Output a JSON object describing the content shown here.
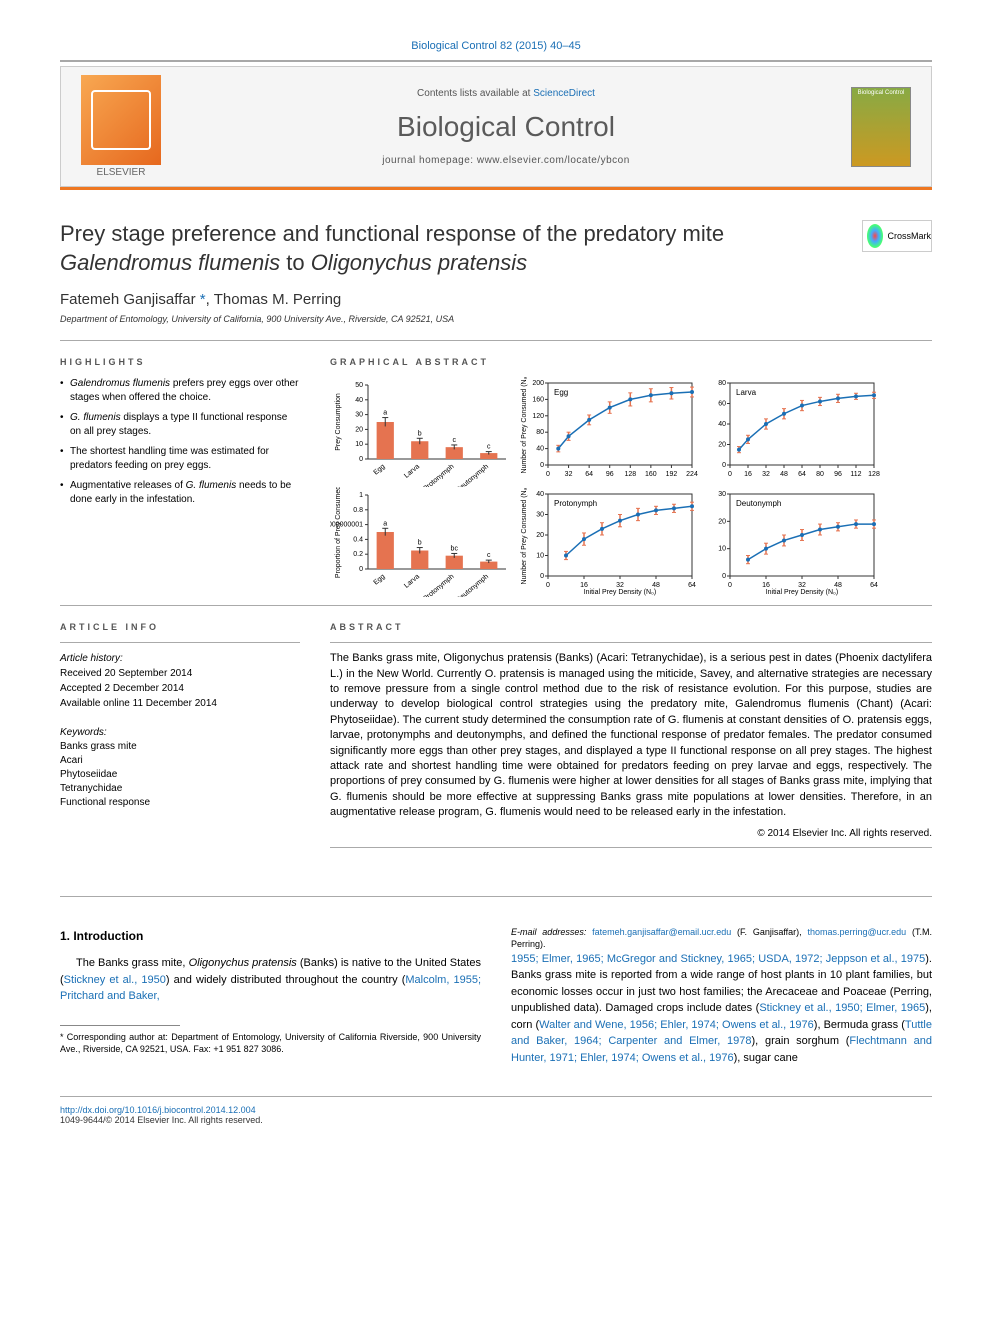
{
  "top_citation": "Biological Control 82 (2015) 40–45",
  "header": {
    "contents": "Contents lists available at",
    "sciencedirect": "ScienceDirect",
    "journal_name": "Biological Control",
    "homepage_label": "journal homepage:",
    "homepage_url": "www.elsevier.com/locate/ybcon",
    "publisher": "ELSEVIER",
    "cover_text": "Biological Control"
  },
  "crossmark_label": "CrossMark",
  "title_line1": "Prey stage preference and functional response of the predatory mite",
  "title_line2_em1": "Galendromus flumenis",
  "title_line2_mid": " to ",
  "title_line2_em2": "Oligonychus pratensis",
  "authors": {
    "a1": "Fatemeh Ganjisaffar",
    "a1_mark": "*",
    "sep": ", ",
    "a2": "Thomas M. Perring"
  },
  "affiliation": "Department of Entomology, University of California, 900 University Ave., Riverside, CA 92521, USA",
  "highlights": {
    "label": "HIGHLIGHTS",
    "items": [
      "Galendromus flumenis prefers prey eggs over other stages when offered the choice.",
      "G. flumenis displays a type II functional response on all prey stages.",
      "The shortest handling time was estimated for predators feeding on prey eggs.",
      "Augmentative releases of G. flumenis needs to be done early in the infestation."
    ]
  },
  "graphical_abstract_label": "GRAPHICAL ABSTRACT",
  "charts": {
    "bar1": {
      "ylabel": "Prey Consumption",
      "categories": [
        "Egg",
        "Larva",
        "Protonymph",
        "Deutonymph"
      ],
      "values": [
        25,
        12,
        8,
        4
      ],
      "letters": [
        "a",
        "b",
        "c",
        "c"
      ],
      "bar_color": "#e57350",
      "ymax": 50,
      "ytick": 10,
      "err": [
        3,
        2,
        1.5,
        1
      ]
    },
    "bar2": {
      "ylabel": "Proportion of Prey Consumed",
      "categories": [
        "Egg",
        "Larva",
        "Protonymph",
        "Deutonymph"
      ],
      "values": [
        0.5,
        0.25,
        0.18,
        0.1
      ],
      "letters": [
        "a",
        "b",
        "bc",
        "c"
      ],
      "bar_color": "#e57350",
      "ymax": 1.0,
      "ytick": 0.2,
      "err": [
        0.05,
        0.04,
        0.03,
        0.02
      ]
    },
    "curves": [
      {
        "title": "Egg",
        "xmax": 224,
        "ymax": 200,
        "xtick": 32,
        "ytick": 40,
        "points_x": [
          16,
          32,
          64,
          96,
          128,
          160,
          192,
          224
        ],
        "points_y": [
          40,
          70,
          110,
          140,
          160,
          170,
          175,
          178
        ],
        "err": [
          8,
          10,
          12,
          14,
          16,
          16,
          14,
          12
        ]
      },
      {
        "title": "Larva",
        "xmax": 128,
        "ymax": 80,
        "xtick": 16,
        "ytick": 20,
        "points_x": [
          8,
          16,
          32,
          48,
          64,
          80,
          96,
          112,
          128
        ],
        "points_y": [
          15,
          25,
          40,
          50,
          58,
          62,
          65,
          67,
          68
        ],
        "err": [
          3,
          4,
          5,
          5,
          5,
          4,
          4,
          3,
          3
        ]
      },
      {
        "title": "Protonymph",
        "xmax": 64,
        "ymax": 40,
        "xtick": 16,
        "ytick": 10,
        "points_x": [
          8,
          16,
          24,
          32,
          40,
          48,
          56,
          64
        ],
        "points_y": [
          10,
          18,
          23,
          27,
          30,
          32,
          33,
          34
        ],
        "err": [
          2,
          3,
          3,
          3,
          3,
          2,
          2,
          2
        ]
      },
      {
        "title": "Deutonymph",
        "xmax": 64,
        "ymax": 30,
        "xtick": 16,
        "ytick": 10,
        "points_x": [
          8,
          16,
          24,
          32,
          40,
          48,
          56,
          64
        ],
        "points_y": [
          6,
          10,
          13,
          15,
          17,
          18,
          19,
          19
        ],
        "err": [
          1.5,
          2,
          2,
          2,
          2,
          1.5,
          1.5,
          1.5
        ]
      }
    ],
    "curves_xlabel": "Initial Prey Density (N₀)",
    "curves_ylabel": "Number of Prey Consumed (Nₐ)",
    "line_color": "#1a6fb5",
    "err_color": "#e57350",
    "axis_color": "#333",
    "font_size": 7
  },
  "article_info": {
    "label": "ARTICLE INFO",
    "history_label": "Article history:",
    "received": "Received 20 September 2014",
    "accepted": "Accepted 2 December 2014",
    "online": "Available online 11 December 2014",
    "keywords_label": "Keywords:",
    "keywords": [
      "Banks grass mite",
      "Acari",
      "Phytoseiidae",
      "Tetranychidae",
      "Functional response"
    ]
  },
  "abstract": {
    "label": "ABSTRACT",
    "text": "The Banks grass mite, Oligonychus pratensis (Banks) (Acari: Tetranychidae), is a serious pest in dates (Phoenix dactylifera L.) in the New World. Currently O. pratensis is managed using the miticide, Savey, and alternative strategies are necessary to remove pressure from a single control method due to the risk of resistance evolution. For this purpose, studies are underway to develop biological control strategies using the predatory mite, Galendromus flumenis (Chant) (Acari: Phytoseiidae). The current study determined the consumption rate of G. flumenis at constant densities of O. pratensis eggs, larvae, protonymphs and deutonymphs, and defined the functional response of predator females. The predator consumed significantly more eggs than other prey stages, and displayed a type II functional response on all prey stages. The highest attack rate and shortest handling time were obtained for predators feeding on prey larvae and eggs, respectively. The proportions of prey consumed by G. flumenis were higher at lower densities for all stages of Banks grass mite, implying that G. flumenis should be more effective at suppressing Banks grass mite populations at lower densities. Therefore, in an augmentative release program, G. flumenis would need to be released early in the infestation.",
    "copyright": "© 2014 Elsevier Inc. All rights reserved."
  },
  "intro": {
    "heading": "1. Introduction",
    "p1a": "The Banks grass mite, ",
    "p1b_em": "Oligonychus pratensis",
    "p1c": " (Banks) is native to the United States (",
    "p1d_ref": "Stickney et al., 1950",
    "p1e": ") and widely distributed throughout the country (",
    "p1f_ref": "Malcolm, 1955; Pritchard and Baker,",
    "p2a_ref": "1955; Elmer, 1965; McGregor and Stickney, 1965; USDA, 1972; Jeppson et al., 1975",
    "p2b": "). Banks grass mite is reported from a wide range of host plants in 10 plant families, but economic losses occur in just two host families; the Arecaceae and Poaceae (Perring, unpublished data). Damaged crops include dates (",
    "p2c_ref": "Stickney et al., 1950; Elmer, 1965",
    "p2d": "), corn (",
    "p2e_ref": "Walter and Wene, 1956; Ehler, 1974; Owens et al., 1976",
    "p2f": "), Bermuda grass (",
    "p2g_ref": "Tuttle and Baker, 1964; Carpenter and Elmer, 1978",
    "p2h": "), grain sorghum (",
    "p2i_ref": "Flechtmann and Hunter, 1971; Ehler, 1974; Owens et al., 1976",
    "p2j": "), sugar cane"
  },
  "footnote": {
    "corr": "* Corresponding author at: Department of Entomology, University of California Riverside, 900 University Ave., Riverside, CA 92521, USA. Fax: +1 951 827 3086.",
    "email_label": "E-mail addresses:",
    "email1": "fatemeh.ganjisaffar@email.ucr.edu",
    "email1_name": " (F. Ganjisaffar), ",
    "email2": "thomas.perring@ucr.edu",
    "email2_name": " (T.M. Perring)."
  },
  "footer": {
    "doi": "http://dx.doi.org/10.1016/j.biocontrol.2014.12.004",
    "issn": "1049-9644/© 2014 Elsevier Inc. All rights reserved."
  }
}
